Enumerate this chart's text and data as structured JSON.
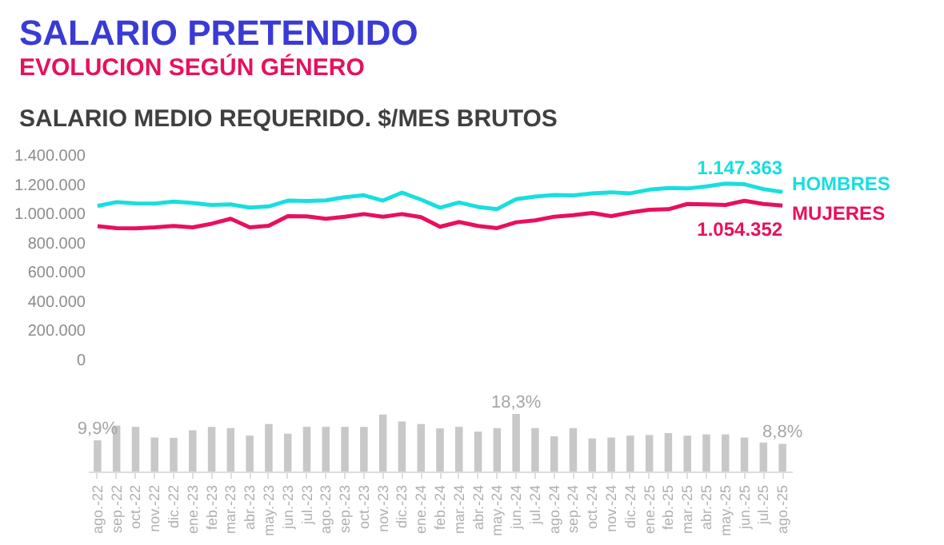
{
  "chart_data": [
    {
      "type": "line",
      "title": "SALARIO PRETENDIDO",
      "subtitle": "EVOLUCION SEGÚN GÉNERO",
      "annotations": [
        "SALARIO MEDIO REQUERIDO. $/MES BRUTOS",
        {
          "text": "1.147.363",
          "x": "ago.-25",
          "y": 1147363
        },
        {
          "text": "1.054.352",
          "x": "ago.-25",
          "y": 1054352
        }
      ],
      "categories": [
        "ago.-22",
        "sep.-22",
        "oct.-22",
        "nov.-22",
        "dic.-22",
        "ene.-23",
        "feb.-23",
        "mar.-23",
        "abr.-23",
        "may.-23",
        "jun.-23",
        "jul.-23",
        "ago.-23",
        "sep.-23",
        "oct.-23",
        "nov.-23",
        "dic.-23",
        "ene.-24",
        "feb.-24",
        "mar.-24",
        "abr.-24",
        "may.-24",
        "jun.-24",
        "jul.-24",
        "ago.-24",
        "sep.-24",
        "oct.-24",
        "nov.-24",
        "dic.-24",
        "ene.-25",
        "feb.-25",
        "mar.-25",
        "abr.-25",
        "may.-25",
        "jun.-25",
        "jul.-25",
        "ago.-25"
      ],
      "series": [
        {
          "name": "HOMBRES",
          "color": "#19dede",
          "values": [
            1051000,
            1078000,
            1069000,
            1068000,
            1082000,
            1072000,
            1058000,
            1062000,
            1040000,
            1048000,
            1088000,
            1086000,
            1090000,
            1112000,
            1125000,
            1088000,
            1143000,
            1095000,
            1040000,
            1075000,
            1045000,
            1030000,
            1098000,
            1116000,
            1127000,
            1124000,
            1138000,
            1145000,
            1138000,
            1163000,
            1174000,
            1171000,
            1185000,
            1204000,
            1200000,
            1167000,
            1147363
          ]
        },
        {
          "name": "MUJERES",
          "color": "#e8105e",
          "values": [
            913000,
            900000,
            898000,
            905000,
            915000,
            905000,
            930000,
            964000,
            905000,
            916000,
            982000,
            980000,
            964000,
            978000,
            996000,
            978000,
            996000,
            975000,
            909000,
            942000,
            915000,
            900000,
            940000,
            953000,
            978000,
            989000,
            1004000,
            982000,
            1007000,
            1025000,
            1029000,
            1065000,
            1062000,
            1058000,
            1087000,
            1065000,
            1054352
          ]
        }
      ],
      "ylim": [
        0,
        1400000
      ],
      "yticks": [
        {
          "value": 0,
          "label": "0"
        },
        {
          "value": 200000,
          "label": "200.000"
        },
        {
          "value": 400000,
          "label": "400.000"
        },
        {
          "value": 600000,
          "label": "600.000"
        },
        {
          "value": 800000,
          "label": "800.000"
        },
        {
          "value": 1000000,
          "label": "1.000.000"
        },
        {
          "value": 1200000,
          "label": "1.200.000"
        },
        {
          "value": 1400000,
          "label": "1.400.000"
        }
      ],
      "tick_labels": "y",
      "line_style": "solid"
    },
    {
      "type": "bar",
      "categories": [
        "ago.-22",
        "sep.-22",
        "oct.-22",
        "nov.-22",
        "dic.-22",
        "ene.-23",
        "feb.-23",
        "mar.-23",
        "abr.-23",
        "may.-23",
        "jun.-23",
        "jul.-23",
        "ago.-23",
        "sep.-23",
        "oct.-23",
        "nov.-23",
        "dic.-23",
        "ene.-24",
        "feb.-24",
        "mar.-24",
        "abr.-24",
        "may.-24",
        "jun.-24",
        "jul.-24",
        "ago.-24",
        "sep.-24",
        "oct.-24",
        "nov.-24",
        "dic.-24",
        "ene.-25",
        "feb.-25",
        "mar.-25",
        "abr.-25",
        "may.-25",
        "jun.-25",
        "jul.-25",
        "ago.-25"
      ],
      "values": [
        9.9,
        14.6,
        14.2,
        10.8,
        10.7,
        13.1,
        14.2,
        13.8,
        11.4,
        15.1,
        12.0,
        14.2,
        14.2,
        14.2,
        14.2,
        18.1,
        15.9,
        15.1,
        13.7,
        14.2,
        12.7,
        13.8,
        18.3,
        13.8,
        11.2,
        13.8,
        10.5,
        10.8,
        11.4,
        11.6,
        12.2,
        11.4,
        11.8,
        11.8,
        10.8,
        9.2,
        8.8
      ],
      "value_labels": [
        "9,9%",
        null,
        null,
        null,
        null,
        null,
        null,
        null,
        null,
        null,
        null,
        null,
        null,
        null,
        null,
        null,
        null,
        null,
        null,
        null,
        null,
        null,
        "18,3%",
        null,
        null,
        null,
        null,
        null,
        null,
        null,
        null,
        null,
        null,
        null,
        null,
        null,
        "8,8%"
      ],
      "color": "#c8c8c8",
      "tick_labels": "x"
    }
  ]
}
